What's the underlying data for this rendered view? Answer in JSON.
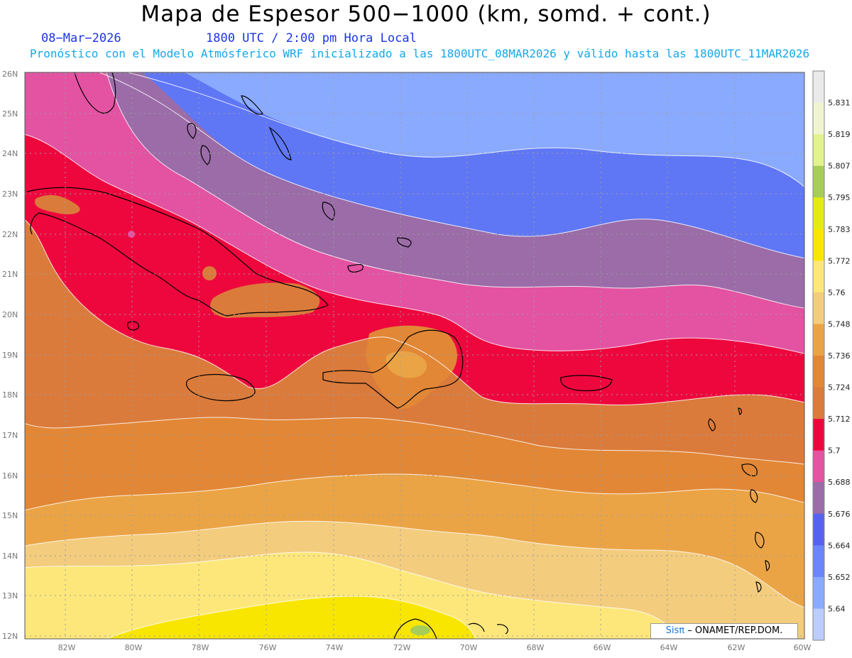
{
  "header": {
    "title": "Mapa de Espesor 500−1000 (km, somd. + cont.)",
    "date": "08−Mar−2026",
    "valid_time": "1800 UTC / 2:00 pm Hora Local",
    "subtitle": "Pronóstico con el Modelo Atmósferico WRF inicializado a las 1800UTC_08MAR2026 y válido hasta las  1800UTC_11MAR2026"
  },
  "map": {
    "lat_labels": [
      "12N",
      "13N",
      "14N",
      "15N",
      "16N",
      "17N",
      "18N",
      "19N",
      "20N",
      "21N",
      "22N",
      "23N",
      "24N",
      "25N",
      "26N"
    ],
    "lon_labels": [
      "82W",
      "80W",
      "78W",
      "76W",
      "74W",
      "72W",
      "70W",
      "68W",
      "66W",
      "64W",
      "62W",
      "60W"
    ],
    "region": "Caribbean / Greater Antilles",
    "grid": true
  },
  "legend": {
    "levels": [
      "5.831",
      "5.819",
      "5.807",
      "5.795",
      "5.783",
      "5.772",
      "5.76",
      "5.748",
      "5.736",
      "5.724",
      "5.712",
      "5.7",
      "5.688",
      "5.676",
      "5.664",
      "5.652",
      "5.64"
    ],
    "colors": [
      "#eaeaea",
      "#f1f5cf",
      "#e2f28c",
      "#a6cd58",
      "#e4ea14",
      "#f9e600",
      "#fde77a",
      "#f3cc7e",
      "#eba445",
      "#e28736",
      "#db7b3b",
      "#ee073d",
      "#e452a2",
      "#9b6ca8",
      "#5562ef",
      "#6b85fb",
      "#8aaaff",
      "#bccdfd"
    ]
  },
  "credit": {
    "brand": "Sisπ",
    "text": "– ONAMET/REP.DOM."
  }
}
